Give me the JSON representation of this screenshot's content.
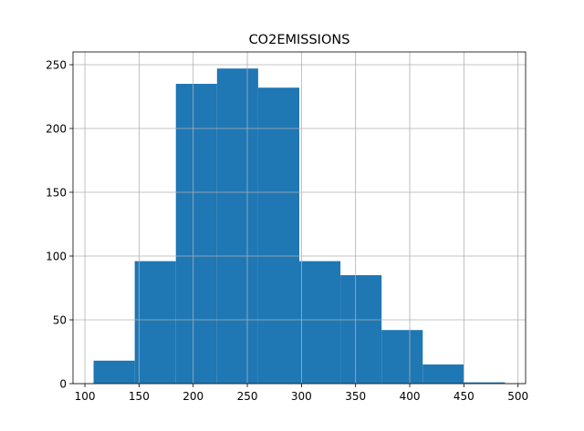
{
  "chart_data": {
    "type": "bar",
    "subtype": "histogram",
    "title": "CO2EMISSIONS",
    "xlabel": "",
    "ylabel": "",
    "bins": [
      {
        "x0": 108,
        "x1": 146,
        "count": 18
      },
      {
        "x0": 146,
        "x1": 184,
        "count": 96
      },
      {
        "x0": 184,
        "x1": 222,
        "count": 235
      },
      {
        "x0": 222,
        "x1": 260,
        "count": 247
      },
      {
        "x0": 260,
        "x1": 298,
        "count": 232
      },
      {
        "x0": 298,
        "x1": 336,
        "count": 96
      },
      {
        "x0": 336,
        "x1": 374,
        "count": 85
      },
      {
        "x0": 374,
        "x1": 412,
        "count": 42
      },
      {
        "x0": 412,
        "x1": 450,
        "count": 15
      },
      {
        "x0": 450,
        "x1": 488,
        "count": 1
      }
    ],
    "xlim": [
      89,
      507
    ],
    "ylim": [
      0,
      260
    ],
    "x_ticks": [
      100,
      150,
      200,
      250,
      300,
      350,
      400,
      450,
      500
    ],
    "y_ticks": [
      0,
      50,
      100,
      150,
      200,
      250
    ],
    "grid": true,
    "bar_color": "#1f77b4",
    "grid_color": "#b0b0b0"
  }
}
